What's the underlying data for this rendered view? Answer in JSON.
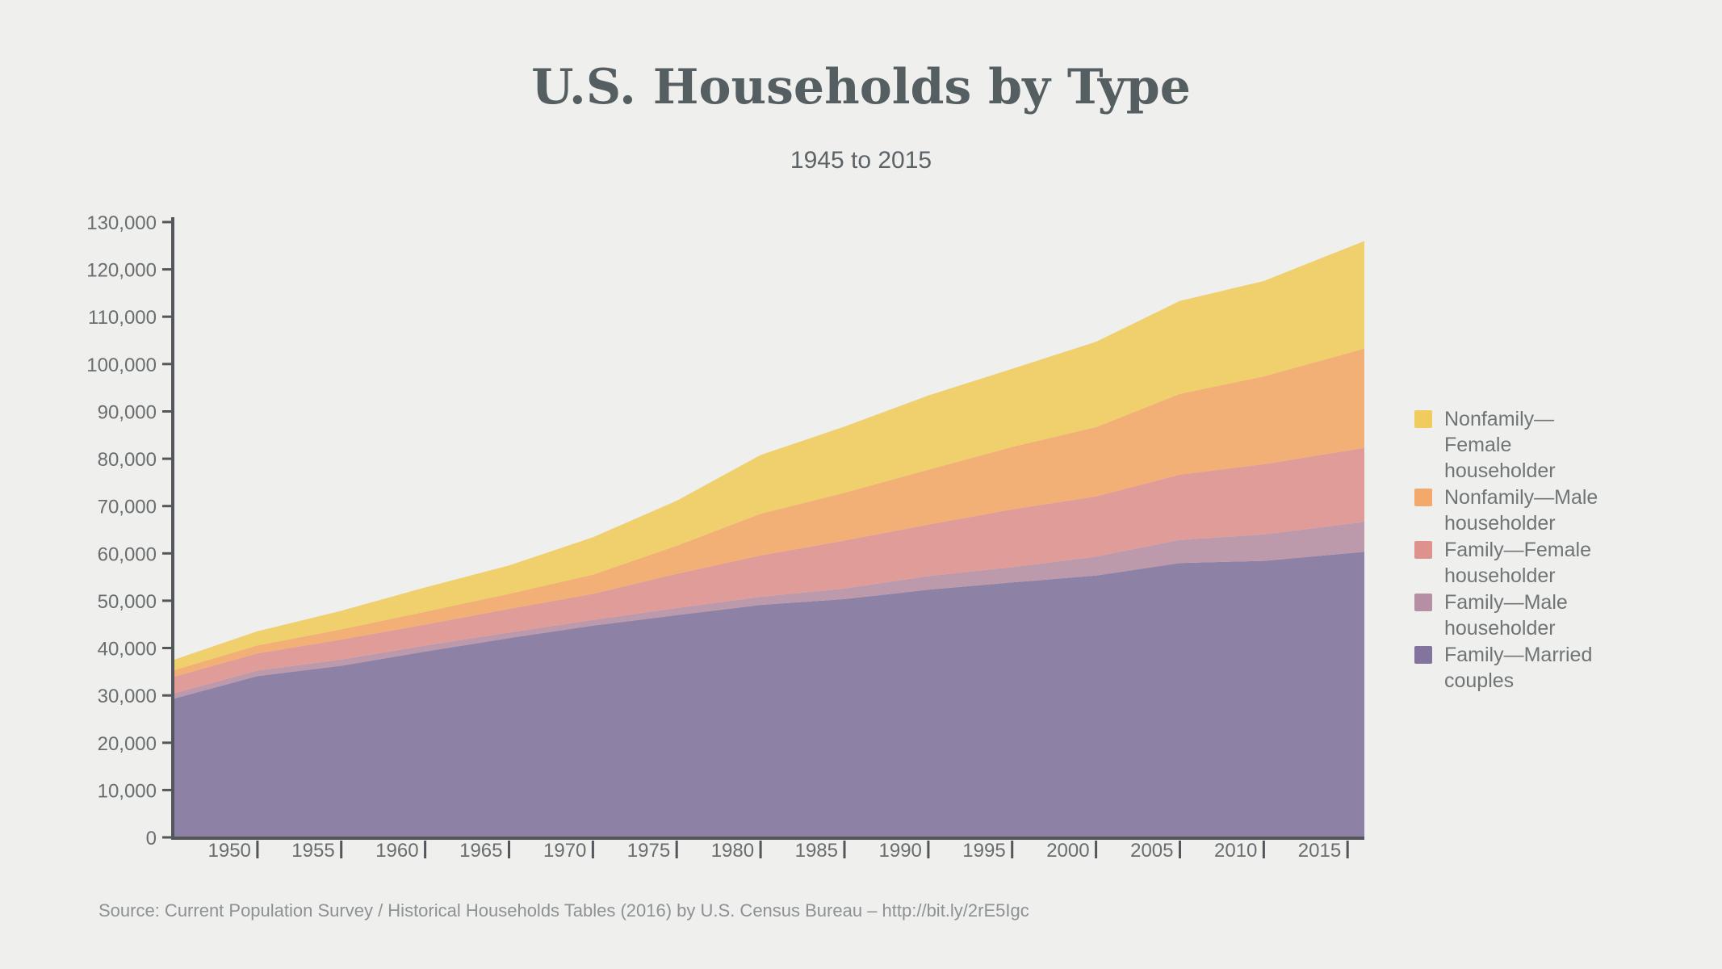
{
  "header": {
    "title": "U.S. Households by Type",
    "subtitle": "1945 to 2015"
  },
  "footer": {
    "source": "Source: Current Population Survey / Historical Households Tables (2016) by U.S. Census Bureau – http://bit.ly/2rE5Igc"
  },
  "colors": {
    "background": "#EFEFED",
    "axis": "#53565A",
    "tick_label": "#686D6F",
    "title_text": "#555E61",
    "legend_text": "#6F7476",
    "source_text": "#8D9193"
  },
  "chart_data": {
    "type": "area",
    "stacked": true,
    "title": "U.S. Households by Type",
    "subtitle": "1945 to 2015",
    "xlabel": "",
    "ylabel": "",
    "grid": false,
    "legend_position": "right",
    "ylim": [
      0,
      130000
    ],
    "y_ticks": [
      0,
      10000,
      20000,
      30000,
      40000,
      50000,
      60000,
      70000,
      80000,
      90000,
      100000,
      110000,
      120000,
      130000
    ],
    "x": [
      1945,
      1950,
      1955,
      1960,
      1965,
      1970,
      1975,
      1980,
      1985,
      1990,
      1995,
      2000,
      2005,
      2010,
      2015
    ],
    "x_ticks": [
      1950,
      1955,
      1960,
      1965,
      1970,
      1975,
      1980,
      1985,
      1990,
      1995,
      2000,
      2005,
      2010,
      2015
    ],
    "area_fill_opacity": 0.9,
    "series": [
      {
        "name": "Family—Married couples",
        "color": "#82749D",
        "values": [
          29300,
          34075,
          36251,
          39254,
          42107,
          44728,
          46951,
          49112,
          50350,
          52317,
          53858,
          55311,
          57975,
          58410,
          60010
        ]
      },
      {
        "name": "Family—Male householder",
        "color": "#B78FA4",
        "values": [
          1100,
          1169,
          1328,
          1275,
          1179,
          1228,
          1499,
          1733,
          2228,
          2884,
          3226,
          4028,
          4893,
          5580,
          6211
        ]
      },
      {
        "name": "Family—Female householder",
        "color": "#DD928E",
        "values": [
          3500,
          3637,
          4225,
          4422,
          4992,
          5500,
          7242,
          8705,
          10129,
          10890,
          12220,
          12687,
          13781,
          14843,
          15495
        ]
      },
      {
        "name": "Nonfamily—Male householder",
        "color": "#F2A969",
        "values": [
          1400,
          1668,
          2141,
          2716,
          3181,
          4063,
          5912,
          8807,
          10114,
          11606,
          13190,
          14641,
          17048,
          18559,
          20562
        ]
      },
      {
        "name": "Nonfamily—Female householder",
        "color": "#F0CC5E",
        "values": [
          2200,
          3005,
          3930,
          5132,
          5977,
          7882,
          9516,
          12419,
          13968,
          15651,
          16496,
          18039,
          19646,
          20146,
          22309
        ]
      }
    ]
  }
}
